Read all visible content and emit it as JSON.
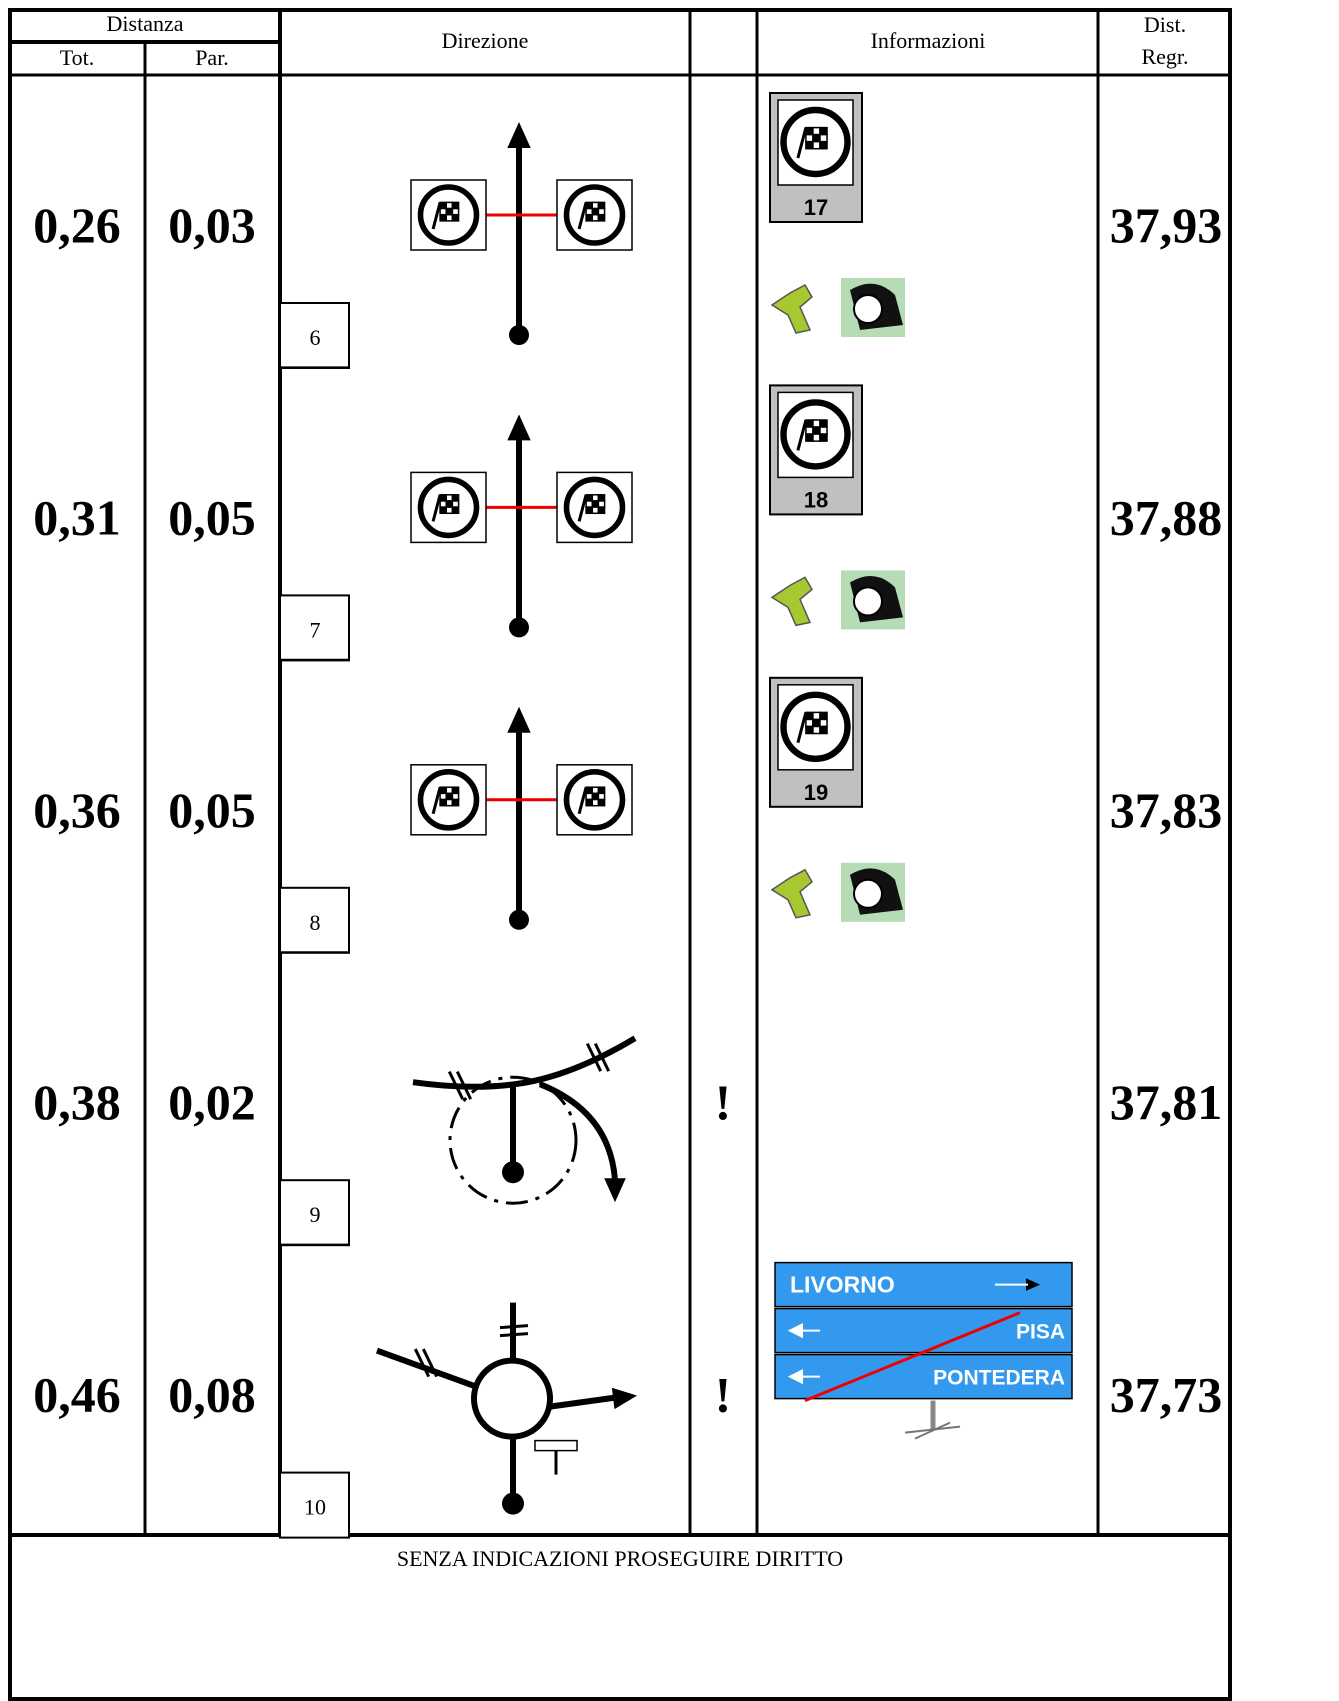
{
  "header": {
    "distanza": "Distanza",
    "tot": "Tot.",
    "par": "Par.",
    "direzione": "Direzione",
    "informazioni": "Informazioni",
    "dist_regr": [
      "Dist.",
      "Regr."
    ]
  },
  "rows": [
    {
      "tot": "0,26",
      "par": "0,03",
      "number": "6",
      "sign": "17",
      "regr": "37,93"
    },
    {
      "tot": "0,31",
      "par": "0,05",
      "number": "7",
      "sign": "18",
      "regr": "37,88"
    },
    {
      "tot": "0,36",
      "par": "0,05",
      "number": "8",
      "sign": "19",
      "regr": "37,83"
    },
    {
      "tot": "0,38",
      "par": "0,02",
      "number": "9",
      "warning": "!",
      "regr": "37,81"
    },
    {
      "tot": "0,46",
      "par": "0,08",
      "number": "10",
      "warning": "!",
      "road_sign": [
        "LIVORNO",
        "PISA",
        "PONTEDERA"
      ],
      "regr": "37,73"
    }
  ],
  "footer": "SENZA INDICAZIONI PROSEGUIRE DIRITTO"
}
